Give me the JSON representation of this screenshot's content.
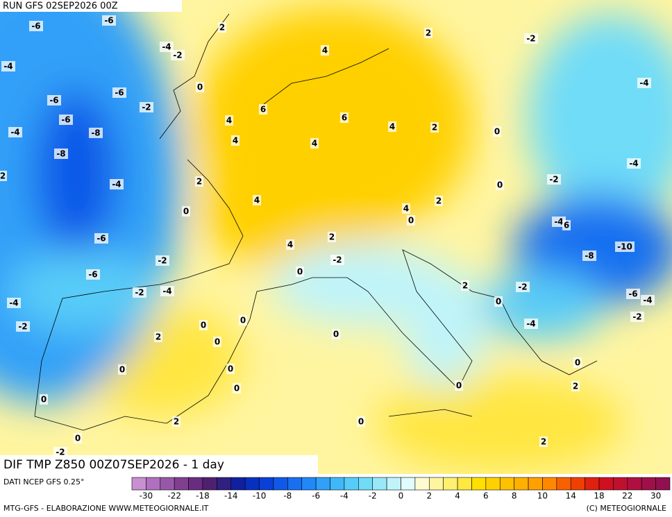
{
  "header": {
    "run": "RUN GFS 02SEP2026 00Z"
  },
  "map": {
    "title": "DIF TMP Z850 00Z07SEP2026 - 1 day",
    "contour_labels": [
      -6,
      -6,
      2,
      2,
      -2,
      4,
      -4,
      -2,
      -4,
      0,
      -6,
      -4,
      -6,
      -2,
      6,
      -6,
      6,
      4,
      4,
      2,
      0,
      -4,
      -8,
      4,
      4,
      -8,
      -4,
      2,
      -2,
      -4,
      2,
      0,
      4,
      2,
      4,
      0,
      0,
      -4,
      6,
      -6,
      2,
      4,
      -10,
      -2,
      -2,
      -8,
      0,
      -6,
      2,
      -2,
      -2,
      -4,
      -6,
      -4,
      0,
      -4,
      -2,
      -4,
      0,
      -2,
      0,
      2,
      0,
      0,
      0,
      0,
      0,
      0,
      0,
      2,
      0,
      2,
      0,
      0,
      2,
      -2
    ]
  },
  "colorbar": {
    "ticks": [
      -30,
      -22,
      -18,
      -14,
      -10,
      -8,
      -6,
      -4,
      -2,
      0,
      2,
      4,
      6,
      8,
      10,
      14,
      18,
      22,
      30
    ],
    "colors": [
      "#c890d0",
      "#b070c0",
      "#9858a8",
      "#804090",
      "#6a2c80",
      "#502070",
      "#302080",
      "#1020a0",
      "#0830c0",
      "#0840d8",
      "#1058e8",
      "#1870f0",
      "#2088f8",
      "#30a0f8",
      "#40b8f8",
      "#58ccf8",
      "#70dcf8",
      "#98e8f8",
      "#c0f4fa",
      "#e0fcfc",
      "#fffbd0",
      "#fff5a0",
      "#fff070",
      "#ffe840",
      "#ffe000",
      "#ffd000",
      "#ffc000",
      "#ffb000",
      "#ffa000",
      "#ff8800",
      "#f86000",
      "#f04000",
      "#e02010",
      "#d01020",
      "#c01030",
      "#b01040",
      "#a01048",
      "#901050"
    ]
  },
  "footer": {
    "source": "DATI NCEP GFS 0.25°",
    "credit": "MTG-GFS - ELABORAZIONE WWW.METEOGIORNALE.IT",
    "copyright": "(C) METEOGIORNALE"
  }
}
